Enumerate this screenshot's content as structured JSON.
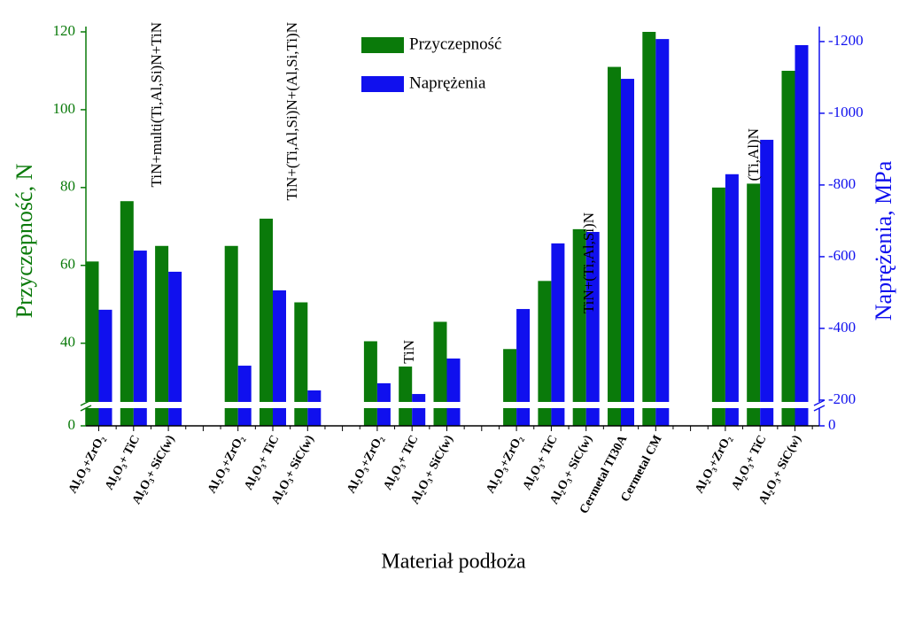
{
  "chart_data": {
    "type": "bar",
    "x_label": "Materiał podłoża",
    "y_label": "Przyczepność, N",
    "y2_label": "Naprężenia, MPa",
    "categories": [
      "Al₂O₃+ZrO₂",
      "Al₂O₃+ TiC",
      "Al₂O₃+ SiC(w)",
      null,
      "Al₂O₃+ZrO₂",
      "Al₂O₃+ TiC",
      "Al₂O₃+ SiC(w)",
      null,
      "Al₂O₃+ZrO₂",
      "Al₂O₃+ TiC",
      "Al₂O₃+ SiC(w)",
      null,
      "Al₂O₃+ZrO₂",
      "Al₂O₃+ TiC",
      "Al₂O₃+ SiC(w)",
      "Cermetal TI30A",
      "Cermetal CM",
      null,
      "Al₂O₃+ZrO₂",
      "Al₂O₃+ TiC",
      "Al₂O₃+ SiC(w)"
    ],
    "series": [
      {
        "name": "Przyczepność",
        "color": "#0a7a0a",
        "values": [
          61,
          76.5,
          65,
          null,
          65,
          72,
          50.5,
          null,
          40.5,
          34,
          45.5,
          null,
          38.5,
          56,
          69.3,
          111,
          120,
          null,
          80,
          81,
          110
        ]
      },
      {
        "name": "Naprężenia",
        "color": "#1010ee",
        "axis": "y2",
        "values": [
          -452,
          -617,
          -558,
          null,
          -296,
          -506,
          -227,
          null,
          -247,
          -217,
          -316,
          null,
          -454,
          -637,
          -669,
          -1096,
          -1207,
          null,
          -830,
          -926,
          -1190
        ]
      }
    ],
    "annotations": [
      "TiN+multi(Ti,Al,Si)N+TiN",
      "TiN+(Ti,Al,Si)N+(Al,Si,Ti)N",
      "TiN",
      "TiN+(Ti,Al,Si)N",
      "(Ti,Al)N"
    ],
    "ylim": [
      0,
      120
    ],
    "yticks": [
      0,
      40,
      60,
      80,
      100,
      120
    ],
    "ybreak": 24,
    "y2lim": [
      0,
      -1227
    ],
    "y2ticks": [
      0,
      -200,
      -400,
      -600,
      -800,
      -1000,
      -1200
    ],
    "y2break": -185,
    "legend": "top"
  }
}
